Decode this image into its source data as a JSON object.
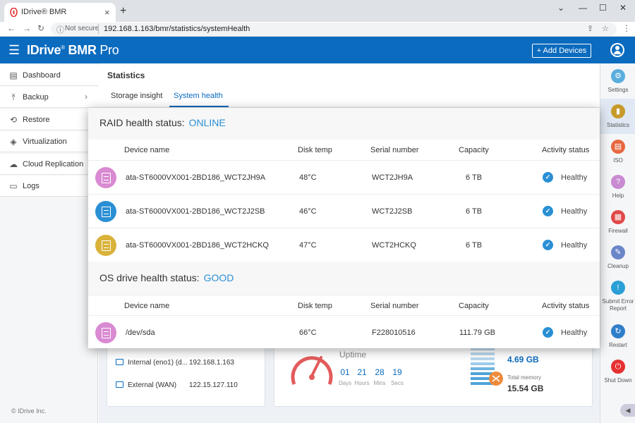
{
  "browser": {
    "tab_title": "IDrive® BMR",
    "tab_close": "×",
    "new_tab": "+",
    "win_min": "⌄",
    "win_minimize": "—",
    "win_max": "☐",
    "win_close": "✕",
    "back": "←",
    "forward": "→",
    "reload": "↻",
    "info": "ⓘ",
    "not_secure": "Not secure",
    "url": "192.168.1.163/bmr/statistics/systemHealth",
    "share": "⇪",
    "star": "☆",
    "menu": "⋮"
  },
  "header": {
    "menu_glyph": "☰",
    "brand_bold": "IDrive",
    "brand_reg": "®",
    "brand_bmr": " BMR",
    "brand_pro": " Pro",
    "add_devices": "+  Add Devices"
  },
  "sidebar": {
    "items": [
      {
        "icon": "▤",
        "label": "Dashboard"
      },
      {
        "icon": "⤒",
        "label": "Backup",
        "chevron": "›"
      },
      {
        "icon": "⟲",
        "label": "Restore"
      },
      {
        "icon": "◈",
        "label": "Virtualization"
      },
      {
        "icon": "☁",
        "label": "Cloud Replication"
      },
      {
        "icon": "▭",
        "label": "Logs"
      }
    ],
    "copyright": "© IDrive Inc."
  },
  "rail": {
    "items": [
      {
        "label": "Settings",
        "color": "#5aaede",
        "glyph": "⚙"
      },
      {
        "label": "Statistics",
        "color": "#c79a2c",
        "glyph": "▮"
      },
      {
        "label": "ISO",
        "color": "#e7673f",
        "glyph": "▤"
      },
      {
        "label": "Help",
        "color": "#c88ad1",
        "glyph": "?"
      },
      {
        "label": "Firewall",
        "color": "#e04848",
        "glyph": "▦"
      },
      {
        "label": "Cleanup",
        "color": "#6b86c8",
        "glyph": "✎"
      },
      {
        "label": "Submit Error Report",
        "color": "#2a9fd6",
        "glyph": "!"
      },
      {
        "label": "Restart",
        "color": "#2f7ec9",
        "glyph": "↻"
      },
      {
        "label": "Shut Down",
        "color": "#e53030",
        "glyph": "⏻"
      }
    ],
    "collapse": "◀"
  },
  "main": {
    "title": "Statistics",
    "tabs": [
      "Storage insight",
      "System health"
    ],
    "network": [
      {
        "label": "Internal (eno1) (d...",
        "value": "192.168.1.163"
      },
      {
        "label": "External (WAN)",
        "value": "122.15.127.110"
      }
    ],
    "uptime": {
      "label": "Uptime",
      "values": [
        "01",
        "21",
        "28",
        "19"
      ],
      "units": [
        "Days",
        "Hours",
        "Mins",
        "Secs"
      ]
    },
    "memory": {
      "used": "4.69 GB",
      "total_label": "Total memory",
      "total": "15.54 GB"
    }
  },
  "raid": {
    "title": "RAID health status:",
    "status": "ONLINE",
    "headers": [
      "Device name",
      "Disk temp",
      "Serial number",
      "Capacity",
      "Activity status"
    ],
    "rows": [
      {
        "name": "ata-ST6000VX001-2BD186_WCT2JH9A",
        "temp": "48°C",
        "serial": "WCT2JH9A",
        "capacity": "6 TB",
        "status": "Healthy",
        "color": "#d98ad2"
      },
      {
        "name": "ata-ST6000VX001-2BD186_WCT2J2SB",
        "temp": "46°C",
        "serial": "WCT2J2SB",
        "capacity": "6 TB",
        "status": "Healthy",
        "color": "#2a8fd4"
      },
      {
        "name": "ata-ST6000VX001-2BD186_WCT2HCKQ",
        "temp": "47°C",
        "serial": "WCT2HCKQ",
        "capacity": "6 TB",
        "status": "Healthy",
        "color": "#d9b23a"
      }
    ]
  },
  "os": {
    "title": "OS drive health status:",
    "status": "GOOD",
    "headers": [
      "Device name",
      "Disk temp",
      "Serial number",
      "Capacity",
      "Activity status"
    ],
    "rows": [
      {
        "name": "/dev/sda",
        "temp": "66°C",
        "serial": "F228010516",
        "capacity": "111.79 GB",
        "status": "Healthy",
        "color": "#d98ad2"
      }
    ]
  },
  "check_glyph": "✓"
}
